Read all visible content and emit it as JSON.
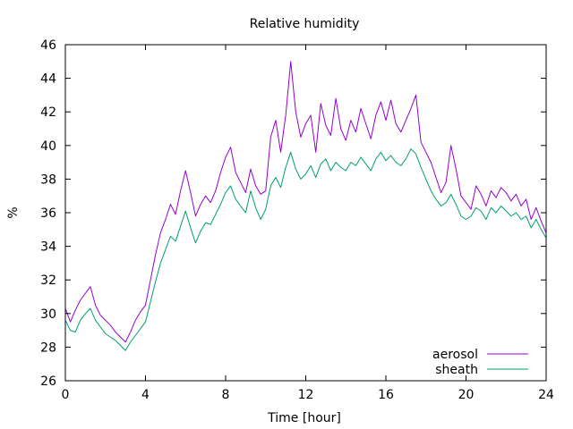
{
  "chart_data": {
    "type": "line",
    "title": "Relative humidity",
    "xlabel": "Time [hour]",
    "ylabel": "%",
    "xlim": [
      0,
      24
    ],
    "ylim": [
      26,
      46
    ],
    "xticks": [
      0,
      4,
      8,
      12,
      16,
      20,
      24
    ],
    "yticks": [
      26,
      28,
      30,
      32,
      34,
      36,
      38,
      40,
      42,
      44,
      46
    ],
    "grid": false,
    "legend_position": "bottom-right",
    "x": [
      0,
      0.25,
      0.5,
      0.75,
      1.0,
      1.25,
      1.5,
      1.75,
      2.0,
      2.25,
      2.5,
      2.75,
      3.0,
      3.25,
      3.5,
      3.75,
      4.0,
      4.25,
      4.5,
      4.75,
      5.0,
      5.25,
      5.5,
      5.75,
      6.0,
      6.25,
      6.5,
      6.75,
      7.0,
      7.25,
      7.5,
      7.75,
      8.0,
      8.25,
      8.5,
      8.75,
      9.0,
      9.25,
      9.5,
      9.75,
      10.0,
      10.25,
      10.5,
      10.75,
      11.0,
      11.25,
      11.5,
      11.75,
      12.0,
      12.25,
      12.5,
      12.75,
      13.0,
      13.25,
      13.5,
      13.75,
      14.0,
      14.25,
      14.5,
      14.75,
      15.0,
      15.25,
      15.5,
      15.75,
      16.0,
      16.25,
      16.5,
      16.75,
      17.0,
      17.25,
      17.5,
      17.75,
      18.0,
      18.25,
      18.5,
      18.75,
      19.0,
      19.25,
      19.5,
      19.75,
      20.0,
      20.25,
      20.5,
      20.75,
      21.0,
      21.25,
      21.5,
      21.75,
      22.0,
      22.25,
      22.5,
      22.75,
      23.0,
      23.25,
      23.5,
      23.75,
      24.0
    ],
    "series": [
      {
        "name": "aerosol",
        "color": "#9400d3",
        "values": [
          30.3,
          29.5,
          30.2,
          30.8,
          31.2,
          31.6,
          30.5,
          29.9,
          29.6,
          29.3,
          28.9,
          28.6,
          28.3,
          28.9,
          29.6,
          30.1,
          30.5,
          32.0,
          33.5,
          34.8,
          35.6,
          36.5,
          35.9,
          37.3,
          38.5,
          37.2,
          35.8,
          36.5,
          37.0,
          36.6,
          37.3,
          38.4,
          39.3,
          39.9,
          38.4,
          37.8,
          37.2,
          38.6,
          37.6,
          37.1,
          37.3,
          40.5,
          41.5,
          39.6,
          41.8,
          45.0,
          42.0,
          40.5,
          41.3,
          41.8,
          39.6,
          42.5,
          41.2,
          40.6,
          42.8,
          41.0,
          40.3,
          41.5,
          40.8,
          42.2,
          41.3,
          40.4,
          41.8,
          42.6,
          41.5,
          42.7,
          41.3,
          40.8,
          41.5,
          42.2,
          43.0,
          40.2,
          39.6,
          39.0,
          38.1,
          37.2,
          37.8,
          40.0,
          38.6,
          37.0,
          36.6,
          36.2,
          37.6,
          37.1,
          36.4,
          37.3,
          36.9,
          37.5,
          37.2,
          36.7,
          37.1,
          36.4,
          36.8,
          35.6,
          36.3,
          35.5,
          34.8
        ]
      },
      {
        "name": "sheath",
        "color": "#009e73",
        "values": [
          29.6,
          29.0,
          28.9,
          29.6,
          30.0,
          30.3,
          29.6,
          29.2,
          28.8,
          28.6,
          28.4,
          28.1,
          27.8,
          28.3,
          28.7,
          29.1,
          29.5,
          30.7,
          31.9,
          33.0,
          33.8,
          34.6,
          34.3,
          35.2,
          36.1,
          35.1,
          34.2,
          34.9,
          35.4,
          35.3,
          35.9,
          36.5,
          37.2,
          37.6,
          36.8,
          36.4,
          36.0,
          37.3,
          36.3,
          35.6,
          36.2,
          37.6,
          38.1,
          37.5,
          38.7,
          39.6,
          38.6,
          38.0,
          38.3,
          38.8,
          38.1,
          38.9,
          39.2,
          38.5,
          39.0,
          38.7,
          38.5,
          39.0,
          38.8,
          39.3,
          38.9,
          38.5,
          39.2,
          39.6,
          39.1,
          39.4,
          39.0,
          38.8,
          39.2,
          39.8,
          39.5,
          38.7,
          38.0,
          37.3,
          36.8,
          36.4,
          36.6,
          37.1,
          36.5,
          35.8,
          35.6,
          35.8,
          36.3,
          36.1,
          35.6,
          36.3,
          36.0,
          36.4,
          36.1,
          35.8,
          36.0,
          35.6,
          35.8,
          35.1,
          35.6,
          35.0,
          34.5
        ]
      }
    ]
  }
}
